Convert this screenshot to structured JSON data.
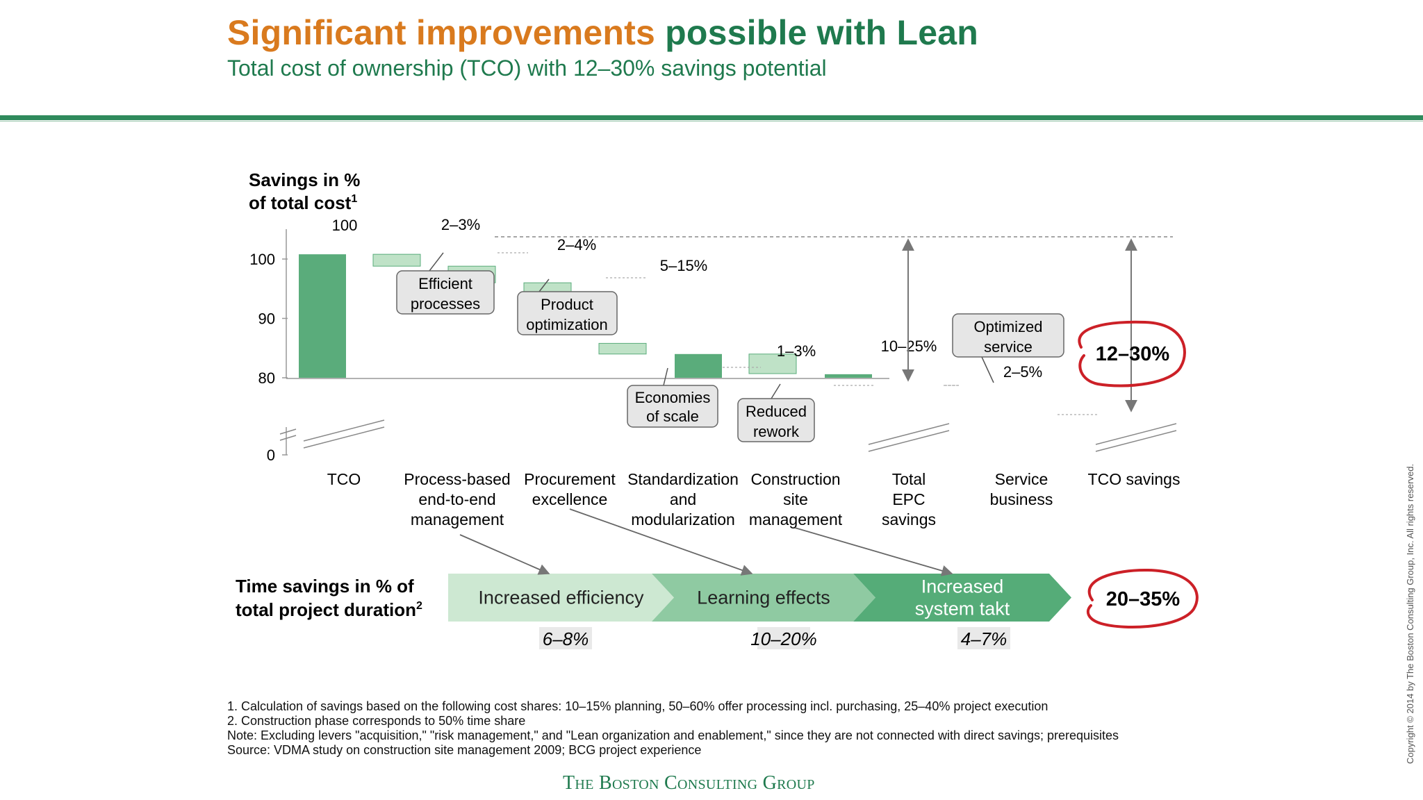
{
  "header": {
    "title_part1": "Significant improvements",
    "title_part2": "possible with Lean",
    "subtitle": "Total cost of ownership (TCO) with 12–30% savings potential",
    "colors": {
      "orange": "#d97a1e",
      "green": "#1f7a4e",
      "rule": "#2f8a5c"
    }
  },
  "chart_data": {
    "type": "bar",
    "subtype": "waterfall",
    "ylabel_line1": "Savings in %",
    "ylabel_line2": "of total cost",
    "ylabel_sup": "1",
    "y_ticks": [
      "100",
      "90",
      "80",
      "0"
    ],
    "y_axis_break": "between 0 and 80",
    "ylim": [
      80,
      100
    ],
    "categories": [
      [
        "TCO"
      ],
      [
        "Process-based",
        "end-to-end",
        "management"
      ],
      [
        "Procurement",
        "excellence"
      ],
      [
        "Standardization",
        "and",
        "modularization"
      ],
      [
        "Construction",
        "site",
        "management"
      ],
      [
        "Total",
        "EPC",
        "savings"
      ],
      [
        "Service",
        "business"
      ],
      [
        "TCO savings"
      ]
    ],
    "bars": [
      {
        "kind": "total",
        "low": 80,
        "high": 100.8,
        "label": "100"
      },
      {
        "kind": "range_high",
        "low": 98.8,
        "high": 100.8,
        "label": ""
      },
      {
        "kind": "range_low",
        "low": 96.0,
        "high": 98.8,
        "label": "2–3%"
      },
      {
        "kind": "range_high",
        "low": 91.0,
        "high": 96.0,
        "label": "2–4%"
      },
      {
        "kind": "range_low",
        "low": 84.0,
        "high": 85.8,
        "label": ""
      },
      {
        "kind": "total",
        "low": 80,
        "high": 84.0,
        "label": "5–15%"
      },
      {
        "kind": "range_high",
        "low": 80.7,
        "high": 84.0,
        "label": "1–3%"
      },
      {
        "kind": "total",
        "low": 80,
        "high": 80.6,
        "label": ""
      }
    ],
    "bar_values_label_note": "waterfall with value ranges",
    "span_labels": [
      {
        "label": "10–25%",
        "from": 100,
        "to": 75
      },
      {
        "label": "12–30%",
        "from": 100,
        "to": 72
      }
    ],
    "service_label": "2–5%",
    "callouts": [
      [
        "Efficient",
        "processes"
      ],
      [
        "Product",
        "optimization"
      ],
      [
        "Economies",
        "of scale"
      ],
      [
        "Reduced",
        "rework"
      ],
      [
        "Optimized",
        "service"
      ]
    ],
    "colors": {
      "bar": "#5aac7b",
      "range": "#bfe2c7",
      "range_edge": "#5aac7b",
      "circle": "#cc2027"
    }
  },
  "time_savings": {
    "label_line1": "Time savings in % of",
    "label_line2": "total project duration",
    "label_sup": "2",
    "steps": [
      {
        "label_lines": [
          "Increased efficiency"
        ],
        "value": "6–8%",
        "color": "#cde8d2"
      },
      {
        "label_lines": [
          "Learning effects"
        ],
        "value": "10–20%",
        "color": "#8fcaa2"
      },
      {
        "label_lines": [
          "Increased",
          "system takt"
        ],
        "value": "4–7%",
        "color": "#55ac78"
      }
    ],
    "total": "20–35%"
  },
  "footnotes": {
    "note1": "1. Calculation of savings based on the following cost shares: 10–15% planning, 50–60% offer processing incl. purchasing, 25–40% project execution",
    "note2": "2. Construction phase corresponds to 50% time share",
    "note3": "Note: Excluding levers \"acquisition,\" \"risk management,\" and \"Lean organization and enablement,\" since they are not connected with direct savings; prerequisites",
    "source": "Source: VDMA study on construction site management 2009; BCG project experience"
  },
  "copyright": "Copyright © 2014 by The Boston Consulting Group, Inc. All rights reserved.",
  "brand": "The Boston Consulting Group"
}
